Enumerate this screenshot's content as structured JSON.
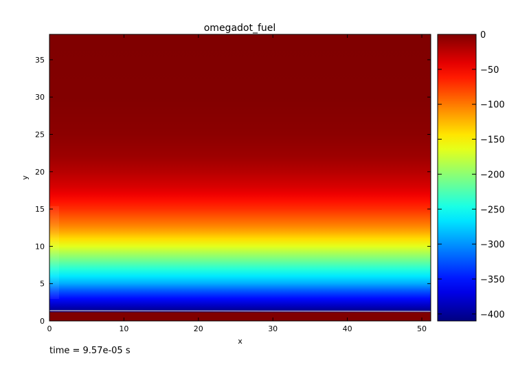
{
  "chart_data": {
    "type": "heatmap",
    "title": "omegadot_fuel",
    "xlabel": "x",
    "ylabel": "y",
    "xlim": [
      0,
      51.2
    ],
    "ylim": [
      0,
      38.4
    ],
    "x_ticks": [
      0,
      10,
      20,
      30,
      40,
      50
    ],
    "y_ticks": [
      0,
      5,
      10,
      15,
      20,
      25,
      30,
      35
    ],
    "colormap": "jet",
    "colorbar": {
      "range": [
        -410,
        0
      ],
      "ticks": [
        0,
        -50,
        -100,
        -150,
        -200,
        -250,
        -300,
        -350,
        -400
      ],
      "tick_labels": [
        "0",
        "−50",
        "−100",
        "−150",
        "−200",
        "−250",
        "−300",
        "−350",
        "−400"
      ]
    },
    "profile_y": [
      0,
      1.1,
      1.3,
      2,
      3,
      4,
      5,
      6,
      7,
      8,
      9,
      10,
      11,
      12,
      13,
      14,
      15,
      16,
      17,
      18,
      20,
      22,
      25,
      30,
      38.4
    ],
    "profile_value": [
      0,
      0,
      -405,
      -385,
      -355,
      -325,
      -290,
      -265,
      -240,
      -215,
      -190,
      -165,
      -140,
      -118,
      -100,
      -85,
      -70,
      -58,
      -45,
      -35,
      -22,
      -12,
      -5,
      -1,
      0
    ]
  },
  "caption": "time = 9.57e-05 s",
  "colors": {
    "background": "#ffffff",
    "axes": "#000000",
    "wall_line": "#c8c8c8"
  }
}
